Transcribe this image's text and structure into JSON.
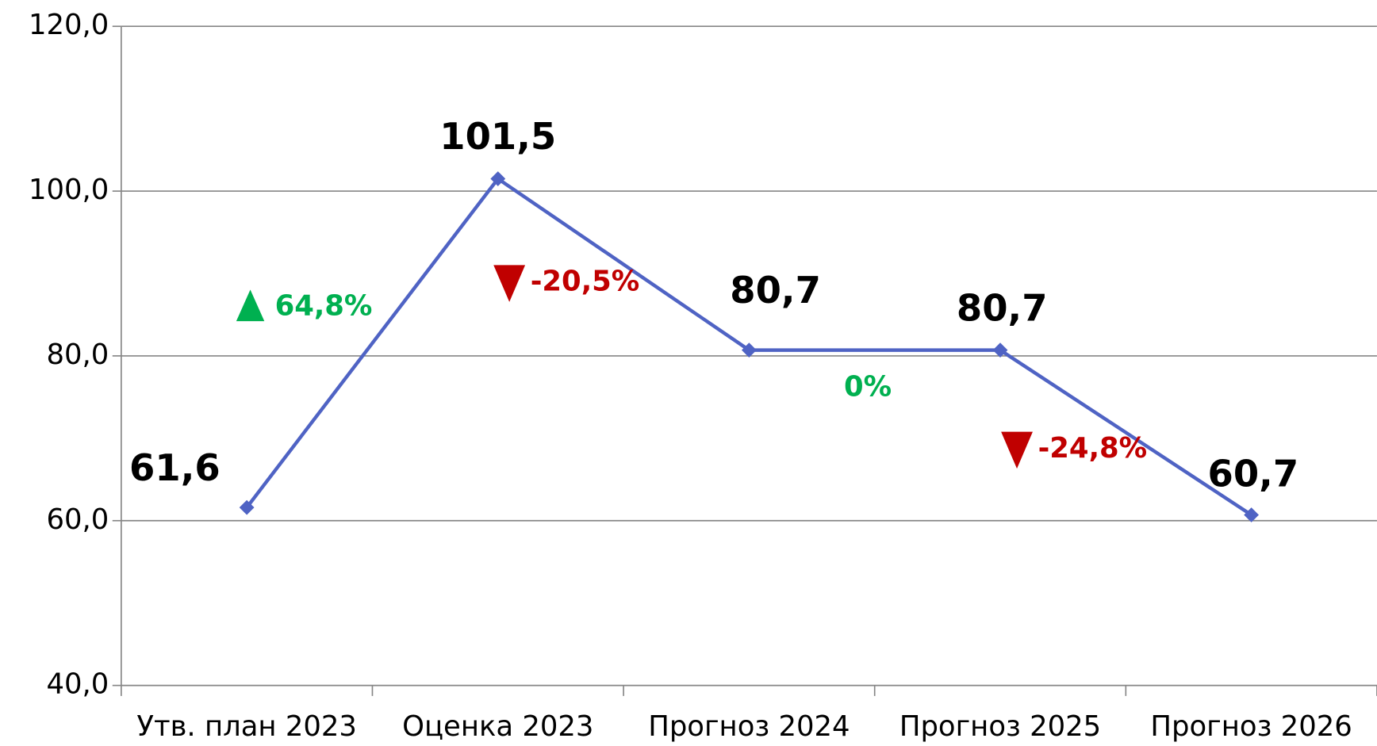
{
  "chart_data": {
    "type": "line",
    "categories": [
      "Утв. план 2023",
      "Оценка 2023",
      "Прогноз 2024",
      "Прогноз 2025",
      "Прогноз 2026"
    ],
    "series": [
      {
        "color": "#4f63c4",
        "values": [
          61.6,
          101.5,
          80.7,
          80.7,
          60.7
        ],
        "value_labels": [
          "61,6",
          "101,5",
          "80,7",
          "80,7",
          "60,7"
        ]
      }
    ],
    "ylim": [
      40,
      120
    ],
    "yticks": [
      {
        "value": 40,
        "label": "40,0"
      },
      {
        "value": 60,
        "label": "60,0"
      },
      {
        "value": 80,
        "label": "80,0"
      },
      {
        "value": 100,
        "label": "100,0"
      },
      {
        "value": 120,
        "label": "120,0"
      }
    ],
    "grid": true,
    "annotations": [
      {
        "text": "64,8%",
        "color": "#00b050",
        "marker": "up"
      },
      {
        "text": "-20,5%",
        "color": "#c00000",
        "marker": "down"
      },
      {
        "text": "0%",
        "color": "#00b050"
      },
      {
        "text": "-24,8%",
        "color": "#c00000",
        "marker": "down"
      }
    ]
  }
}
